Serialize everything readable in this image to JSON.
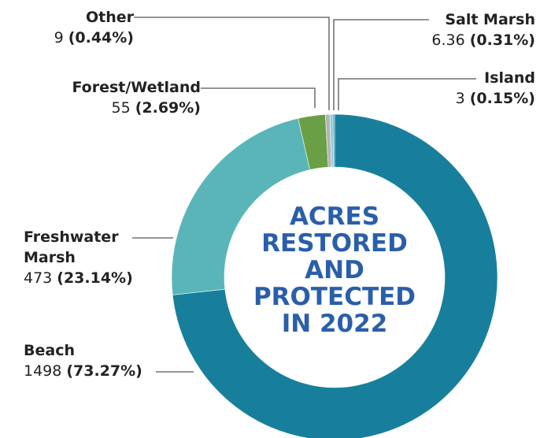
{
  "chart_data": {
    "type": "donut",
    "title": "ACRES RESTORED AND PROTECTED IN 2022",
    "categories": [
      "Beach",
      "Freshwater Marsh",
      "Forest/Wetland",
      "Other",
      "Salt Marsh",
      "Island"
    ],
    "values": [
      1498,
      473,
      55,
      9,
      6.36,
      3
    ],
    "percent_labels": [
      "(73.27%)",
      "(23.14%)",
      "(2.69%)",
      "(0.44%)",
      "(0.31%)",
      "(0.15%)"
    ],
    "colors": [
      "#177f9c",
      "#5ab5b8",
      "#6a9f45",
      "#b3b3b3",
      "#8ecfd6",
      "#3f8fb3"
    ]
  }
}
